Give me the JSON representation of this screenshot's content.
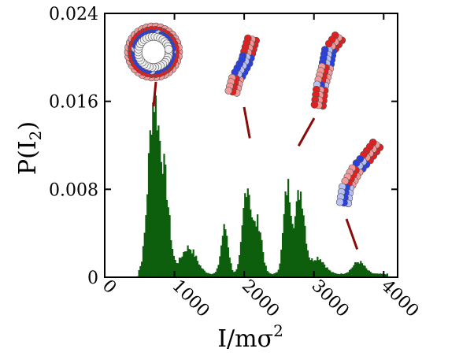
{
  "chart_data": {
    "type": "bar",
    "xlabel": "I/mσ",
    "xlabel_sup": "2",
    "ylabel": "P(I",
    "ylabel_sub": "2",
    "ylabel_close": ")",
    "xlim": [
      0,
      4200
    ],
    "ylim": [
      0,
      0.024
    ],
    "xticks": [
      0,
      1000,
      2000,
      3000,
      4000
    ],
    "xtick_labels": [
      "0",
      "1000",
      "2000",
      "3000",
      "4000"
    ],
    "yticks": [
      0,
      0.008,
      0.016,
      0.024
    ],
    "ytick_labels": [
      "0",
      "0.008",
      "0.016",
      "0.024"
    ],
    "bin_width": 20,
    "bar_color": "#0d5e0d",
    "grid": false,
    "peaks": [
      {
        "x": 700,
        "y": 0.0154,
        "w": 180
      },
      {
        "x": 860,
        "y": 0.0075,
        "w": 160
      },
      {
        "x": 1200,
        "y": 0.0024,
        "w": 260
      },
      {
        "x": 1720,
        "y": 0.0042,
        "w": 120
      },
      {
        "x": 2040,
        "y": 0.0082,
        "w": 140
      },
      {
        "x": 2200,
        "y": 0.0045,
        "w": 130
      },
      {
        "x": 2620,
        "y": 0.0078,
        "w": 130
      },
      {
        "x": 2800,
        "y": 0.0075,
        "w": 150
      },
      {
        "x": 3050,
        "y": 0.0015,
        "w": 230
      },
      {
        "x": 3640,
        "y": 0.0011,
        "w": 200
      }
    ],
    "baseline": {
      "from": 420,
      "to": 4050,
      "y": 0.0003
    }
  },
  "insets": [
    {
      "name": "ring-conformation-inset",
      "peak_x": 700,
      "peak_y": 0.0154
    },
    {
      "name": "bent-rod-inset",
      "peak_x": 2080,
      "peak_y": 0.0125
    },
    {
      "name": "s-chain-inset",
      "peak_x": 2780,
      "peak_y": 0.0118
    },
    {
      "name": "extended-chain-inset",
      "peak_x": 3620,
      "peak_y": 0.0024
    }
  ],
  "colors": {
    "bead_red": "#e02020",
    "bead_blue": "#2a3fe0",
    "bead_pink": "#f29a9a",
    "bead_lightblue": "#b8c0f5",
    "leader": "#8b0a0a"
  }
}
